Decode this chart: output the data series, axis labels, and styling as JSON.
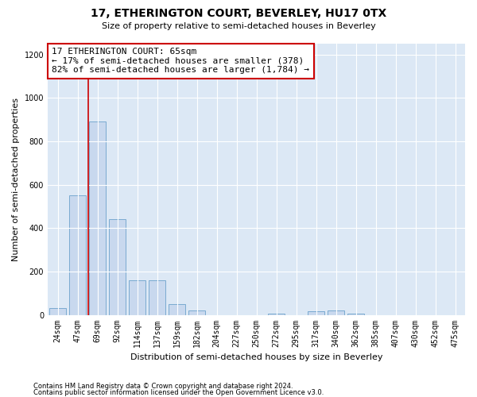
{
  "title": "17, ETHERINGTON COURT, BEVERLEY, HU17 0TX",
  "subtitle": "Size of property relative to semi-detached houses in Beverley",
  "xlabel": "Distribution of semi-detached houses by size in Beverley",
  "ylabel": "Number of semi-detached properties",
  "footer1": "Contains HM Land Registry data © Crown copyright and database right 2024.",
  "footer2": "Contains public sector information licensed under the Open Government Licence v3.0.",
  "categories": [
    "24sqm",
    "47sqm",
    "69sqm",
    "92sqm",
    "114sqm",
    "137sqm",
    "159sqm",
    "182sqm",
    "204sqm",
    "227sqm",
    "250sqm",
    "272sqm",
    "295sqm",
    "317sqm",
    "340sqm",
    "362sqm",
    "385sqm",
    "407sqm",
    "430sqm",
    "452sqm",
    "475sqm"
  ],
  "values": [
    30,
    550,
    890,
    440,
    160,
    160,
    50,
    20,
    0,
    0,
    0,
    5,
    0,
    15,
    20,
    5,
    0,
    0,
    0,
    0,
    0
  ],
  "bar_color": "#c8d8ee",
  "bar_edge_color": "#7aaad0",
  "annotation_line1": "17 ETHERINGTON COURT: 65sqm",
  "annotation_line2": "← 17% of semi-detached houses are smaller (378)",
  "annotation_line3": "82% of semi-detached houses are larger (1,784) →",
  "vline_x": 1.55,
  "vline_color": "#cc0000",
  "box_edge_color": "#cc0000",
  "ylim": [
    0,
    1250
  ],
  "yticks": [
    0,
    200,
    400,
    600,
    800,
    1000,
    1200
  ],
  "bg_color": "#dce8f5",
  "title_fontsize": 10,
  "subtitle_fontsize": 8,
  "ylabel_fontsize": 8,
  "xlabel_fontsize": 8,
  "tick_fontsize": 7,
  "ann_fontsize": 8
}
